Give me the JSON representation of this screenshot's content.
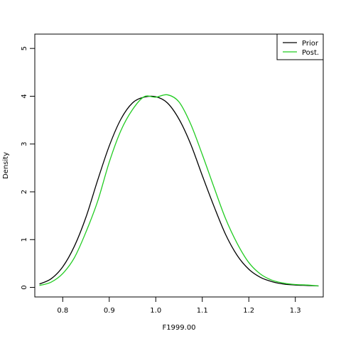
{
  "chart_data": {
    "type": "line",
    "title": "",
    "xlabel": "F1999.00",
    "ylabel": "Density",
    "xlim": [
      0.74,
      1.36
    ],
    "ylim": [
      -0.2,
      5.3
    ],
    "xticks": [
      0.8,
      0.9,
      1.0,
      1.1,
      1.2,
      1.3
    ],
    "xtick_labels": [
      "0.8",
      "0.9",
      "1.0",
      "1.1",
      "1.2",
      "1.3"
    ],
    "yticks": [
      0,
      1,
      2,
      3,
      4,
      5
    ],
    "ytick_labels": [
      "0",
      "1",
      "2",
      "3",
      "4",
      "5"
    ],
    "grid": false,
    "legend": {
      "position": "top-right"
    },
    "series": [
      {
        "name": "Prior",
        "color": "#000000",
        "x": [
          0.75,
          0.775,
          0.8,
          0.825,
          0.85,
          0.875,
          0.9,
          0.925,
          0.95,
          0.975,
          1.0,
          1.025,
          1.05,
          1.075,
          1.1,
          1.125,
          1.15,
          1.175,
          1.2,
          1.225,
          1.25,
          1.275,
          1.3,
          1.325,
          1.35
        ],
        "y": [
          0.07,
          0.18,
          0.43,
          0.86,
          1.47,
          2.24,
          2.96,
          3.52,
          3.86,
          3.98,
          3.99,
          3.86,
          3.52,
          3.0,
          2.34,
          1.7,
          1.11,
          0.67,
          0.38,
          0.21,
          0.12,
          0.07,
          0.05,
          0.04,
          0.03
        ]
      },
      {
        "name": "Post.",
        "color": "#22cc22",
        "x": [
          0.75,
          0.775,
          0.8,
          0.825,
          0.85,
          0.875,
          0.9,
          0.925,
          0.95,
          0.975,
          1.0,
          1.025,
          1.05,
          1.075,
          1.1,
          1.125,
          1.15,
          1.175,
          1.2,
          1.225,
          1.25,
          1.275,
          1.3,
          1.325,
          1.35
        ],
        "y": [
          0.04,
          0.11,
          0.29,
          0.62,
          1.16,
          1.8,
          2.62,
          3.28,
          3.72,
          3.99,
          3.98,
          4.03,
          3.88,
          3.42,
          2.78,
          2.1,
          1.44,
          0.92,
          0.52,
          0.28,
          0.15,
          0.09,
          0.06,
          0.05,
          0.03
        ]
      }
    ]
  }
}
